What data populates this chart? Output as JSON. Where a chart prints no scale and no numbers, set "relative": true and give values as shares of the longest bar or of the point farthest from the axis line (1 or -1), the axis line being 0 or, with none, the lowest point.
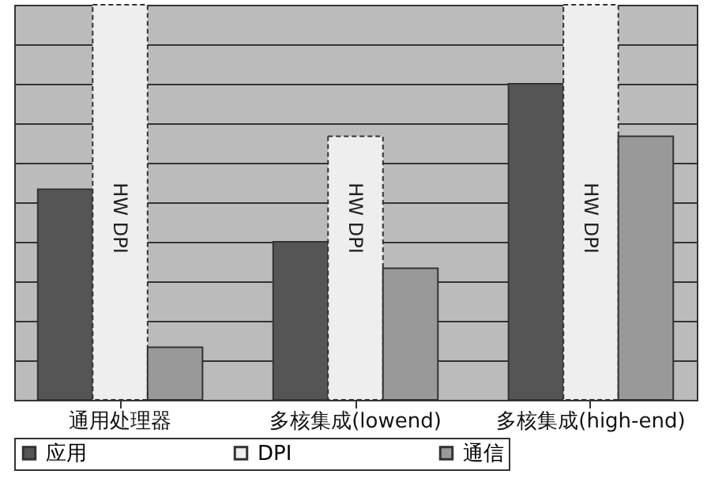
{
  "chart_data": {
    "type": "bar",
    "relative": true,
    "categories": [
      "通用处理器",
      "多核集成(lowend)",
      "多核集成(high-end)"
    ],
    "series": [
      {
        "name": "应用",
        "color": "#555555",
        "values": [
          0.533,
          0.4,
          0.8
        ]
      },
      {
        "name": "DPI",
        "color": "#eeeeee",
        "values": [
          1,
          0.667,
          1
        ],
        "line_style": "dashed"
      },
      {
        "name": "通信",
        "color": "#999999",
        "values": [
          0.133,
          0.333,
          0.667
        ]
      }
    ],
    "annotations": [
      "HW DPI",
      "HW DPI",
      "HW DPI"
    ],
    "grid": "y",
    "legend": "bottom"
  }
}
